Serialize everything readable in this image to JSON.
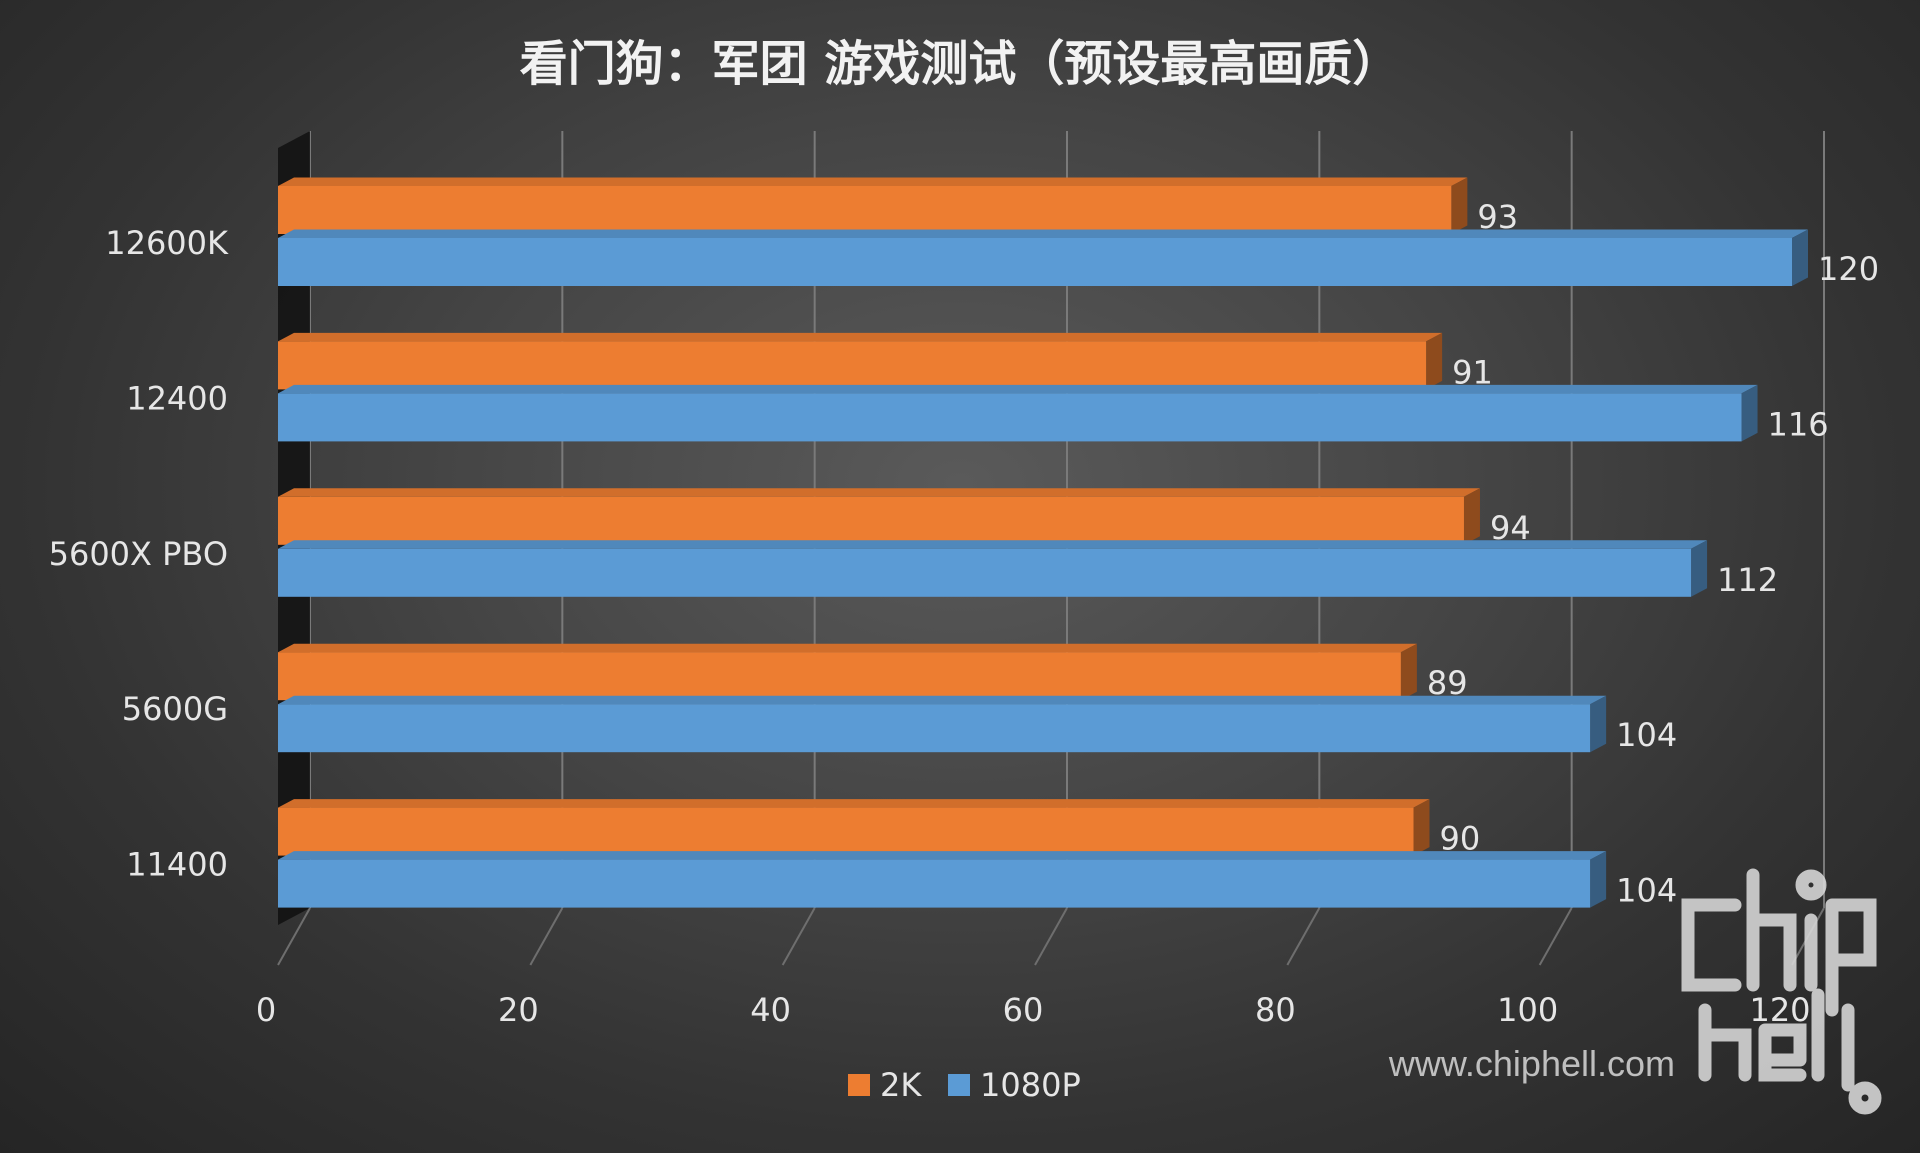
{
  "chart_data": {
    "type": "bar",
    "orientation": "horizontal",
    "title": "看门狗：军团 游戏测试（预设最高画质）",
    "categories": [
      "12600K",
      "12400",
      "5600X PBO",
      "5600G",
      "11400"
    ],
    "series": [
      {
        "name": "2K",
        "values": [
          93,
          91,
          94,
          89,
          90
        ],
        "color": "#ED7D31"
      },
      {
        "name": "1080P",
        "values": [
          120,
          116,
          112,
          104,
          104
        ],
        "color": "#5B9BD5"
      }
    ],
    "xlim": [
      0,
      120
    ],
    "xticks": [
      0,
      20,
      40,
      60,
      80,
      100,
      120
    ],
    "grid": true,
    "legend": "bottom"
  },
  "watermark": {
    "logo_text": "chip hell",
    "url_text": "www.chiphell.com"
  }
}
